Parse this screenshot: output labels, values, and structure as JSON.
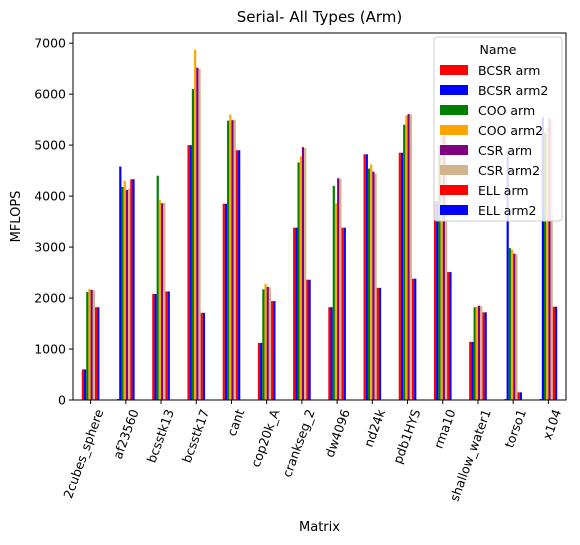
{
  "chart_data": {
    "type": "bar",
    "title": "Serial- All Types (Arm)",
    "xlabel": "Matrix",
    "ylabel": "MFLOPS",
    "ylim": [
      0,
      7200
    ],
    "yticks": [
      0,
      1000,
      2000,
      3000,
      4000,
      5000,
      6000,
      7000
    ],
    "grid": false,
    "legend_title": "Name",
    "legend_position": "top-right",
    "categories": [
      "2cubes_sphere",
      "af23560",
      "bcsstk13",
      "bcsstk17",
      "cant",
      "cop20k_A",
      "crankseg_2",
      "dw4096",
      "nd24k",
      "pdb1HYS",
      "rma10",
      "shallow_water1",
      "torso1",
      "x104"
    ],
    "series": [
      {
        "name": "BCSR arm",
        "color": "#ff0000",
        "values": [
          600,
          20,
          2080,
          5000,
          3850,
          1120,
          3380,
          1820,
          4820,
          4850,
          3900,
          1140,
          20,
          20
        ]
      },
      {
        "name": "BCSR arm2",
        "color": "#0000ff",
        "values": [
          600,
          4580,
          2080,
          5000,
          3850,
          1120,
          3380,
          1820,
          4820,
          4850,
          3900,
          1140,
          4900,
          5550
        ]
      },
      {
        "name": "COO arm",
        "color": "#008000",
        "values": [
          2120,
          4180,
          4400,
          6100,
          5480,
          2170,
          4660,
          4200,
          4540,
          5400,
          5000,
          1820,
          2980,
          5250
        ]
      },
      {
        "name": "COO arm2",
        "color": "#ffa500",
        "values": [
          2180,
          4300,
          3920,
          6870,
          5600,
          2280,
          4780,
          3860,
          4620,
          5580,
          5150,
          1830,
          2950,
          5350
        ]
      },
      {
        "name": "CSR arm",
        "color": "#800080",
        "values": [
          2160,
          4120,
          3860,
          6520,
          5490,
          2220,
          4960,
          4350,
          4480,
          5610,
          5180,
          1850,
          2870,
          5520
        ]
      },
      {
        "name": "CSR arm2",
        "color": "#d2b48c",
        "values": [
          2150,
          4150,
          3870,
          6500,
          5500,
          2210,
          4940,
          4340,
          4440,
          5600,
          5170,
          1840,
          2860,
          5500
        ]
      },
      {
        "name": "ELL arm",
        "color": "#ff0000",
        "values": [
          1820,
          4330,
          2130,
          1710,
          4900,
          1940,
          2360,
          3380,
          2200,
          2380,
          2510,
          1720,
          150,
          1830
        ]
      },
      {
        "name": "ELL arm2",
        "color": "#0000ff",
        "values": [
          1820,
          4330,
          2130,
          1710,
          4900,
          1940,
          2360,
          3380,
          2200,
          2380,
          2510,
          1720,
          150,
          1830
        ]
      }
    ]
  }
}
